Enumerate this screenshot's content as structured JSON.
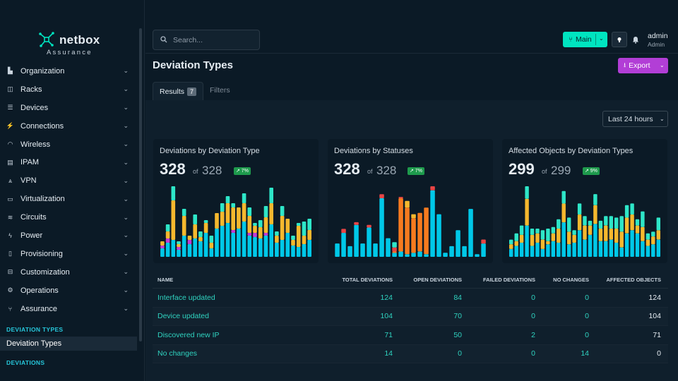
{
  "brand": {
    "name": "netbox",
    "subtitle": "Assurance",
    "accent": "#00e4c0"
  },
  "sidebar": {
    "items": [
      {
        "label": "Organization",
        "icon": "building-icon"
      },
      {
        "label": "Racks",
        "icon": "rack-icon"
      },
      {
        "label": "Devices",
        "icon": "server-icon"
      },
      {
        "label": "Connections",
        "icon": "plug-icon"
      },
      {
        "label": "Wireless",
        "icon": "wifi-icon"
      },
      {
        "label": "IPAM",
        "icon": "ip-icon"
      },
      {
        "label": "VPN",
        "icon": "vpn-icon"
      },
      {
        "label": "Virtualization",
        "icon": "monitor-icon"
      },
      {
        "label": "Circuits",
        "icon": "circuit-icon"
      },
      {
        "label": "Power",
        "icon": "bolt-icon"
      },
      {
        "label": "Provisioning",
        "icon": "file-icon"
      },
      {
        "label": "Customization",
        "icon": "toolbox-icon"
      },
      {
        "label": "Operations",
        "icon": "cogs-icon"
      },
      {
        "label": "Assurance",
        "icon": "branch-icon"
      }
    ],
    "section_deviation_types": "DEVIATION TYPES",
    "active_item": "Deviation Types",
    "section_deviations": "DEVIATIONS"
  },
  "header": {
    "search_placeholder": "Search...",
    "branch_label": "Main",
    "user_name": "admin",
    "user_role": "Admin"
  },
  "page": {
    "title": "Deviation Types",
    "export_label": "Export",
    "tabs": {
      "results": "Results",
      "results_count": "7",
      "filters": "Filters"
    },
    "time_range": "Last 24 hours"
  },
  "colors": {
    "cyan": "#00c8e8",
    "yellow": "#f5b82e",
    "teal": "#2ee6c8",
    "magenta": "#c13bd6",
    "orange": "#f77b1f",
    "red": "#e84545"
  },
  "chart_data": [
    {
      "type": "bar",
      "title": "Deviations by Deviation Type",
      "value": "328",
      "of": "of",
      "total": "328",
      "change": "↗ 7%",
      "stacked": true,
      "series": [
        {
          "color": "#00c8e8",
          "values": [
            12,
            20,
            24,
            10,
            30,
            18,
            26,
            22,
            34,
            12,
            40,
            44,
            48,
            34,
            40,
            50,
            30,
            28,
            26,
            30,
            46,
            20,
            24,
            34,
            16,
            14,
            18,
            24
          ]
        },
        {
          "color": "#c13bd6",
          "values": [
            4,
            6,
            0,
            4,
            0,
            6,
            0,
            0,
            0,
            0,
            0,
            0,
            0,
            4,
            0,
            0,
            4,
            6,
            0,
            4,
            0,
            0,
            0,
            0,
            0,
            0,
            0,
            0
          ]
        },
        {
          "color": "#f5b82e",
          "values": [
            6,
            10,
            56,
            4,
            28,
            6,
            20,
            6,
            14,
            8,
            22,
            20,
            28,
            32,
            30,
            26,
            24,
            10,
            16,
            22,
            30,
            10,
            34,
            20,
            8,
            30,
            12,
            14
          ]
        },
        {
          "color": "#2ee6c8",
          "values": [
            0,
            10,
            20,
            4,
            10,
            0,
            14,
            8,
            4,
            10,
            0,
            12,
            10,
            6,
            0,
            14,
            12,
            4,
            10,
            16,
            22,
            6,
            14,
            0,
            6,
            4,
            20,
            16
          ]
        }
      ]
    },
    {
      "type": "bar",
      "title": "Deviations by Statuses",
      "value": "328",
      "of": "of",
      "total": "328",
      "change": "↗ 7%",
      "stacked": true,
      "series": [
        {
          "color": "#00c8e8",
          "values": [
            20,
            36,
            16,
            48,
            20,
            44,
            20,
            88,
            28,
            6,
            8,
            4,
            6,
            8,
            4,
            100,
            64,
            6,
            16,
            40,
            16,
            72,
            4,
            20
          ]
        },
        {
          "color": "#f77b1f",
          "values": [
            0,
            0,
            0,
            0,
            0,
            0,
            0,
            0,
            0,
            2,
            80,
            70,
            52,
            58,
            70,
            0,
            0,
            0,
            0,
            0,
            0,
            0,
            0,
            0
          ]
        },
        {
          "color": "#f5b82e",
          "values": [
            0,
            0,
            0,
            0,
            0,
            0,
            0,
            0,
            0,
            0,
            0,
            10,
            6,
            0,
            0,
            0,
            0,
            0,
            0,
            0,
            0,
            0,
            0,
            0
          ]
        },
        {
          "color": "#e84545",
          "values": [
            0,
            6,
            0,
            4,
            0,
            4,
            0,
            6,
            0,
            6,
            2,
            0,
            0,
            0,
            0,
            6,
            0,
            0,
            0,
            0,
            0,
            0,
            0,
            6
          ]
        },
        {
          "color": "#2ee6c8",
          "values": [
            0,
            0,
            0,
            0,
            0,
            0,
            0,
            0,
            0,
            8,
            0,
            0,
            0,
            0,
            0,
            0,
            0,
            0,
            0,
            0,
            0,
            0,
            0,
            0
          ]
        }
      ]
    },
    {
      "type": "bar",
      "title": "Affected Objects by Deviation Types",
      "value": "299",
      "of": "of",
      "total": "299",
      "change": "↗ 9%",
      "stacked": true,
      "series": [
        {
          "color": "#00c8e8",
          "values": [
            10,
            14,
            18,
            40,
            14,
            18,
            10,
            16,
            20,
            18,
            44,
            16,
            18,
            34,
            22,
            28,
            42,
            20,
            20,
            22,
            18,
            12,
            30,
            34,
            30,
            20,
            14,
            16,
            22
          ]
        },
        {
          "color": "#f5b82e",
          "values": [
            6,
            6,
            10,
            34,
            14,
            12,
            12,
            4,
            10,
            18,
            24,
            16,
            10,
            20,
            18,
            12,
            24,
            16,
            20,
            14,
            18,
            20,
            20,
            20,
            10,
            18,
            8,
            10,
            12
          ]
        },
        {
          "color": "#2ee6c8",
          "values": [
            6,
            10,
            12,
            16,
            8,
            6,
            12,
            16,
            8,
            12,
            16,
            18,
            6,
            14,
            12,
            6,
            14,
            10,
            12,
            16,
            14,
            20,
            16,
            14,
            8,
            20,
            8,
            6,
            16
          ]
        }
      ]
    }
  ],
  "table": {
    "columns": [
      "NAME",
      "TOTAL DEVIATIONS",
      "OPEN DEVIATIONS",
      "FAILED DEVIATIONS",
      "NO CHANGES",
      "AFFECTED OBJECTS"
    ],
    "rows": [
      {
        "name": "Interface updated",
        "total": "124",
        "open": "84",
        "failed": "0",
        "no_changes": "0",
        "affected": "124"
      },
      {
        "name": "Device updated",
        "total": "104",
        "open": "70",
        "failed": "0",
        "no_changes": "0",
        "affected": "104"
      },
      {
        "name": "Discovered new IP",
        "total": "71",
        "open": "50",
        "failed": "2",
        "no_changes": "0",
        "affected": "71"
      },
      {
        "name": "No changes",
        "total": "14",
        "open": "0",
        "failed": "0",
        "no_changes": "14",
        "affected": "0"
      }
    ]
  }
}
